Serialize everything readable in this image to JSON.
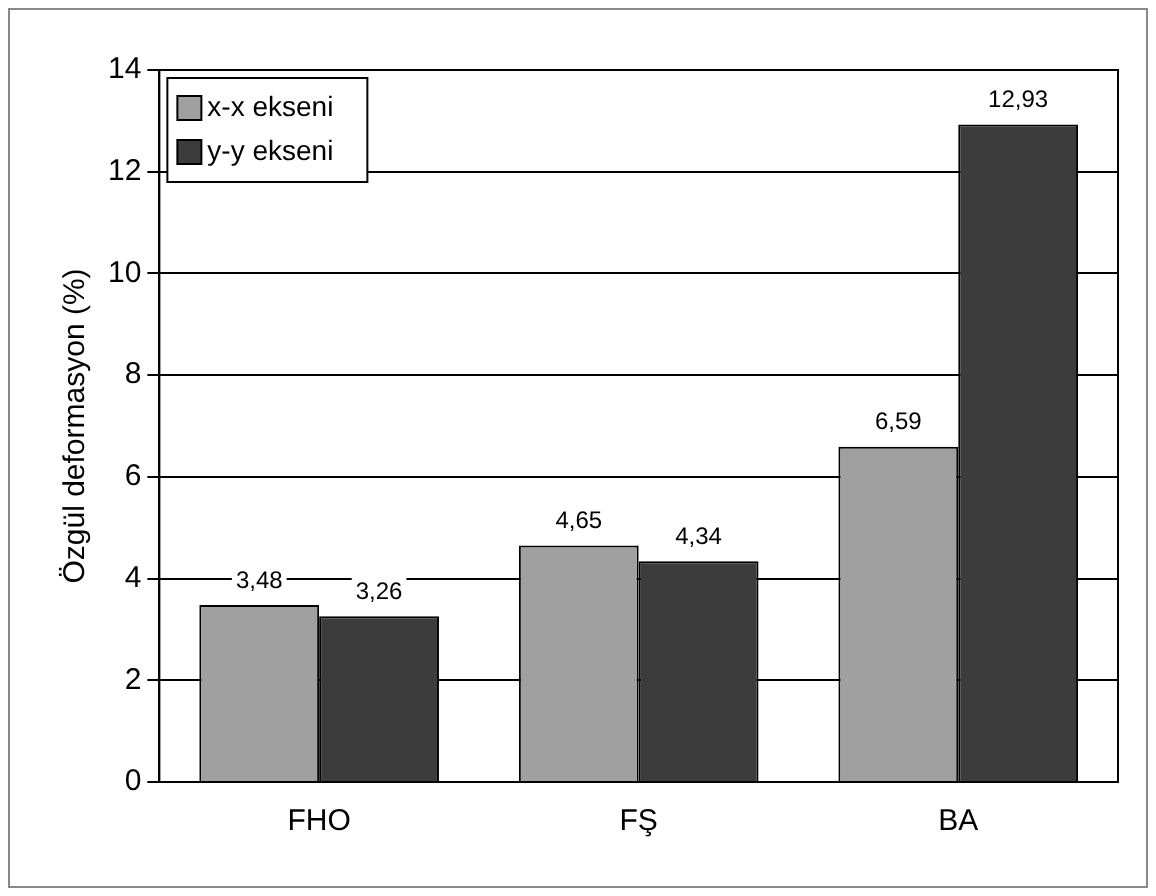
{
  "chart_data": {
    "type": "bar",
    "ylabel": "Özgül deformasyon (%)",
    "categories": [
      "FHO",
      "FŞ",
      "BA"
    ],
    "series": [
      {
        "name": "x-x ekseni",
        "color": "#a0a0a0",
        "values": [
          3.48,
          4.65,
          6.59
        ],
        "value_labels": [
          "3,48",
          "4,65",
          "6,59"
        ]
      },
      {
        "name": "y-y ekseni",
        "color": "#3c3c3c",
        "values": [
          3.26,
          4.34,
          12.93
        ],
        "value_labels": [
          "3,26",
          "4,34",
          "12,93"
        ]
      }
    ],
    "ylim": [
      0,
      14
    ],
    "yticks": [
      0,
      2,
      4,
      6,
      8,
      10,
      12,
      14
    ],
    "grid": "y",
    "legend": "top left"
  }
}
